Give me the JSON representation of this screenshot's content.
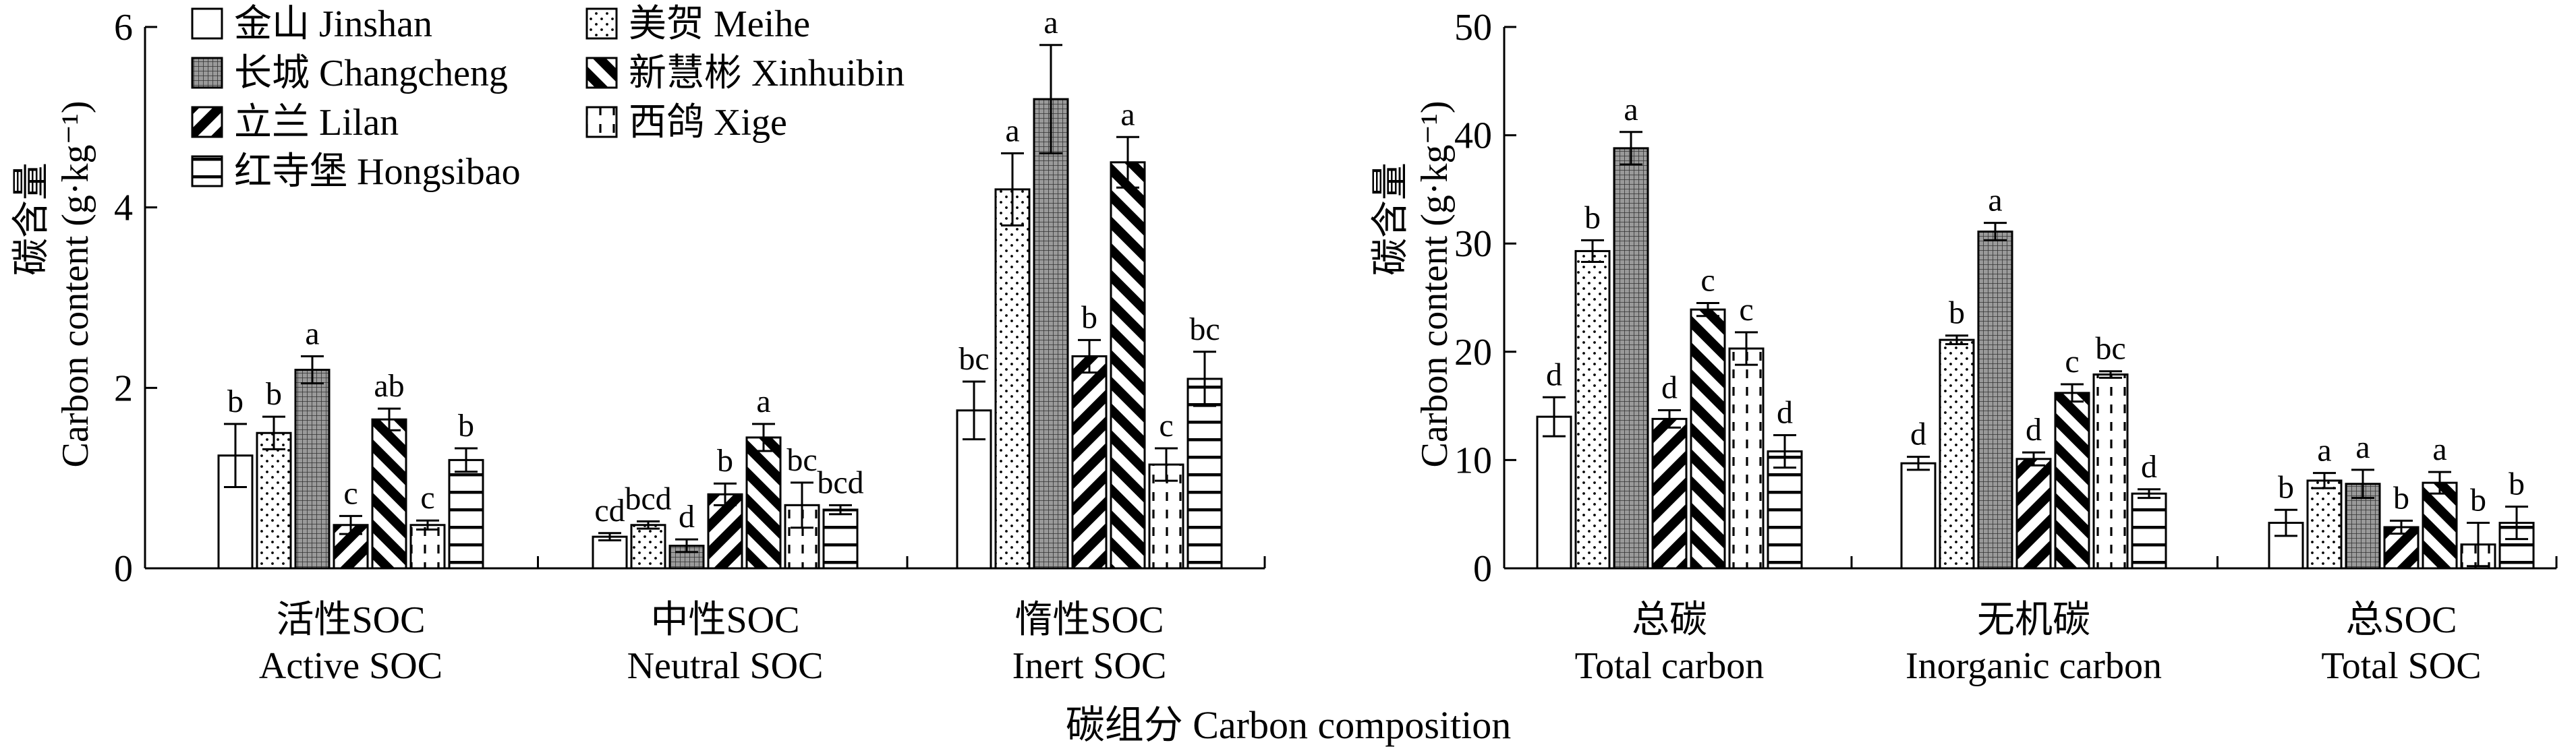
{
  "x_axis_label": "碳组分 Carbon composition",
  "legend": [
    {
      "name": "金山 Jinshan",
      "pattern": "white"
    },
    {
      "name": "长城 Changcheng",
      "pattern": "grid"
    },
    {
      "name": "立兰 Lilan",
      "pattern": "back-diag"
    },
    {
      "name": "红寺堡 Hongsibao",
      "pattern": "hlines"
    },
    {
      "name": "美贺 Meihe",
      "pattern": "dots"
    },
    {
      "name": "新慧彬 Xinhuibin",
      "pattern": "fwd-diag"
    },
    {
      "name": "西鸽 Xige",
      "pattern": "dash-vert"
    }
  ],
  "chart_data": [
    {
      "type": "bar",
      "ylabel_cn": "碳含量",
      "ylabel_en": "Carbon content (g·kg⁻¹)",
      "ylim": [
        0,
        6
      ],
      "yticks": [
        "0",
        "2",
        "4",
        "6"
      ],
      "categories": [
        {
          "cn": "活性SOC",
          "en": "Active SOC"
        },
        {
          "cn": "中性SOC",
          "en": "Neutral SOC"
        },
        {
          "cn": "惰性SOC",
          "en": "Inert SOC"
        }
      ],
      "series": [
        {
          "name": "金山 Jinshan",
          "values": [
            1.25,
            0.35,
            1.75
          ],
          "errors": [
            0.35,
            0.04,
            0.32
          ],
          "letters": [
            "b",
            "cd",
            "bc"
          ]
        },
        {
          "name": "美贺 Meihe",
          "values": [
            1.5,
            0.48,
            4.2
          ],
          "errors": [
            0.18,
            0.04,
            0.4
          ],
          "letters": [
            "b",
            "bcd",
            "a"
          ]
        },
        {
          "name": "长城 Changcheng",
          "values": [
            2.2,
            0.25,
            5.2
          ],
          "errors": [
            0.15,
            0.07,
            0.6
          ],
          "letters": [
            "a",
            "d",
            "a"
          ]
        },
        {
          "name": "立兰 Lilan",
          "values": [
            0.48,
            0.82,
            2.35
          ],
          "errors": [
            0.1,
            0.12,
            0.18
          ],
          "letters": [
            "c",
            "b",
            "b"
          ]
        },
        {
          "name": "新慧彬 Xinhuibin",
          "values": [
            1.65,
            1.45,
            4.5
          ],
          "errors": [
            0.12,
            0.15,
            0.28
          ],
          "letters": [
            "ab",
            "a",
            "a"
          ]
        },
        {
          "name": "西鸽 Xige",
          "values": [
            0.48,
            0.7,
            1.15
          ],
          "errors": [
            0.05,
            0.25,
            0.18
          ],
          "letters": [
            "c",
            "bc",
            "c"
          ]
        },
        {
          "name": "红寺堡 Hongsibao",
          "values": [
            1.2,
            0.65,
            2.1
          ],
          "errors": [
            0.13,
            0.05,
            0.3
          ],
          "letters": [
            "b",
            "bcd",
            "bc"
          ]
        }
      ]
    },
    {
      "type": "bar",
      "ylabel_cn": "碳含量",
      "ylabel_en": "Carbon content (g·kg⁻¹)",
      "ylim": [
        0,
        50
      ],
      "yticks": [
        "0",
        "10",
        "20",
        "30",
        "40",
        "50"
      ],
      "categories": [
        {
          "cn": "总碳",
          "en": "Total carbon"
        },
        {
          "cn": "无机碳",
          "en": "Inorganic carbon"
        },
        {
          "cn": "总SOC",
          "en": "Total SOC"
        }
      ],
      "series": [
        {
          "name": "金山 Jinshan",
          "values": [
            14,
            9.7,
            4.2
          ],
          "errors": [
            1.8,
            0.6,
            1.2
          ],
          "letters": [
            "d",
            "d",
            "b"
          ]
        },
        {
          "name": "美贺 Meihe",
          "values": [
            29.3,
            21.1,
            8.1
          ],
          "errors": [
            1.0,
            0.4,
            0.7
          ],
          "letters": [
            "b",
            "b",
            "a"
          ]
        },
        {
          "name": "长城 Changcheng",
          "values": [
            38.8,
            31.1,
            7.8
          ],
          "errors": [
            1.5,
            0.8,
            1.3
          ],
          "letters": [
            "a",
            "a",
            "a"
          ]
        },
        {
          "name": "立兰 Lilan",
          "values": [
            13.8,
            10.1,
            3.8
          ],
          "errors": [
            0.8,
            0.6,
            0.6
          ],
          "letters": [
            "d",
            "d",
            "b"
          ]
        },
        {
          "name": "新慧彬 Xinhuibin",
          "values": [
            23.9,
            16.2,
            7.9
          ],
          "errors": [
            0.6,
            0.8,
            1.0
          ],
          "letters": [
            "c",
            "c",
            "a"
          ]
        },
        {
          "name": "西鸽 Xige",
          "values": [
            20.3,
            17.9,
            2.2
          ],
          "errors": [
            1.5,
            0.3,
            2.0
          ],
          "letters": [
            "c",
            "bc",
            "b"
          ]
        },
        {
          "name": "红寺堡 Hongsibao",
          "values": [
            10.8,
            6.9,
            4.2
          ],
          "errors": [
            1.5,
            0.4,
            1.5
          ],
          "letters": [
            "d",
            "d",
            "b"
          ]
        }
      ]
    }
  ]
}
